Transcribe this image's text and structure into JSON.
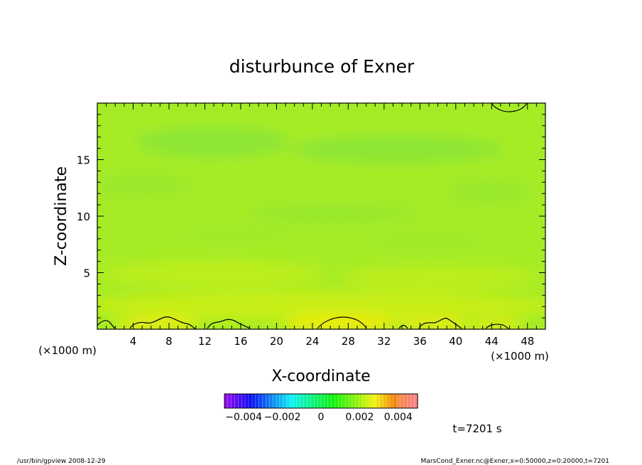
{
  "chart_data": {
    "type": "heatmap",
    "title": "disturbunce of Exner",
    "xlabel": "X-coordinate",
    "ylabel": "Z-coordinate",
    "x_unit": "(×1000 m)",
    "y_unit": "(×1000 m)",
    "xlim": [
      0,
      50
    ],
    "ylim": [
      0,
      20
    ],
    "x_ticks": [
      4,
      8,
      12,
      16,
      20,
      24,
      28,
      32,
      36,
      40,
      44,
      48
    ],
    "y_ticks": [
      5,
      10,
      15
    ],
    "colorbar": {
      "min": -0.005,
      "max": 0.005,
      "tick_values": [
        -0.004,
        -0.002,
        0,
        0.002,
        0.004
      ],
      "tick_labels": [
        "−0.004",
        "−0.002",
        "0",
        "0.002",
        "0.004"
      ]
    },
    "field_description": "near-zero disturbance everywhere (about 0.0000–0.0005), slightly larger near the surface z<1 km, with a closed contour near the top right",
    "time_label": "t=7201 s"
  },
  "footer": {
    "left": "/usr/bin/gpview  2008-12-29",
    "right": "MarsCond_Exner.nc@Exner,x=0:50000,z=0:20000,t=7201"
  }
}
